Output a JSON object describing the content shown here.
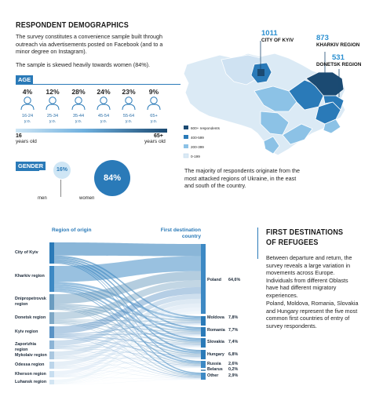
{
  "demographics": {
    "title": "RESPONDENT DEMOGRAPHICS",
    "intro": "The survey constitutes a convenience sample built through outreach via advertisements posted on Facebook (and to a minor degree on Instagram).",
    "skew": "The sample is skewed heavily towards women (84%).",
    "age_tag": "AGE",
    "age_groups": [
      {
        "pct": "4%",
        "range": "16-24",
        "unit": "y.o."
      },
      {
        "pct": "12%",
        "range": "25-34",
        "unit": "y.o."
      },
      {
        "pct": "28%",
        "range": "35-44",
        "unit": "y.o."
      },
      {
        "pct": "24%",
        "range": "45-54",
        "unit": "y.o."
      },
      {
        "pct": "23%",
        "range": "55-64",
        "unit": "y.o."
      },
      {
        "pct": "9%",
        "range": "65+",
        "unit": "y.o."
      }
    ],
    "age_min": "16",
    "age_min_unit": "years old",
    "age_max": "65+",
    "age_max_unit": "years old",
    "gender_tag": "GENDER",
    "men_pct": "16%",
    "women_pct": "84%",
    "men_label": "men",
    "women_label": "women",
    "colors": {
      "accent": "#2a7ab8",
      "light": "#cfe6f5",
      "dark": "#1b4a72"
    }
  },
  "map": {
    "kyiv_count": "1011",
    "kyiv_label": "CITY OF KYIV",
    "kharkiv_count": "873",
    "kharkiv_label": "KHARKIV REGION",
    "donetsk_count": "531",
    "donetsk_label": "DONETSK REGION",
    "legend": [
      "600+ respondents",
      "400-599",
      "200-399",
      "0-199"
    ],
    "legend_colors": [
      "#1b4a72",
      "#2a7ab8",
      "#8cc2e6",
      "#dbeaf5"
    ],
    "caption": "The majority of respondents originate from the most attacked regions of Ukraine, in the east and south of the country."
  },
  "flow": {
    "origin_title": "Region of origin",
    "dest_title": "First destination country",
    "origins": [
      "City of Kyiv",
      "Kharkiv region",
      "Dnipropetrovsk region",
      "Donetsk region",
      "Kyiv region",
      "Zaporizhia region",
      "Mykolaiv region",
      "Odessa region",
      "Kherson region",
      "Luhansk region"
    ],
    "destinations": [
      {
        "name": "Poland",
        "pct": "64,6%"
      },
      {
        "name": "Moldova",
        "pct": "7,8%"
      },
      {
        "name": "Romania",
        "pct": "7,7%"
      },
      {
        "name": "Slovakia",
        "pct": "7,4%"
      },
      {
        "name": "Hungary",
        "pct": "6,8%"
      },
      {
        "name": "Russia",
        "pct": "2,6%"
      },
      {
        "name": "Belarus",
        "pct": "0,2%"
      },
      {
        "name": "Other",
        "pct": "2,9%"
      }
    ]
  },
  "refugees": {
    "title_line1": "FIRST DESTINATIONS",
    "title_line2": "OF REFUGEES",
    "para1": "Between departure and return, the survey reveals a large variation in movements across Europe. Individuals from different Oblasts have had different migratory experiences.",
    "para2": "Poland, Moldova, Romania, Slovakia and Hungary represent the five most common first countries of entry of survey respondents."
  }
}
